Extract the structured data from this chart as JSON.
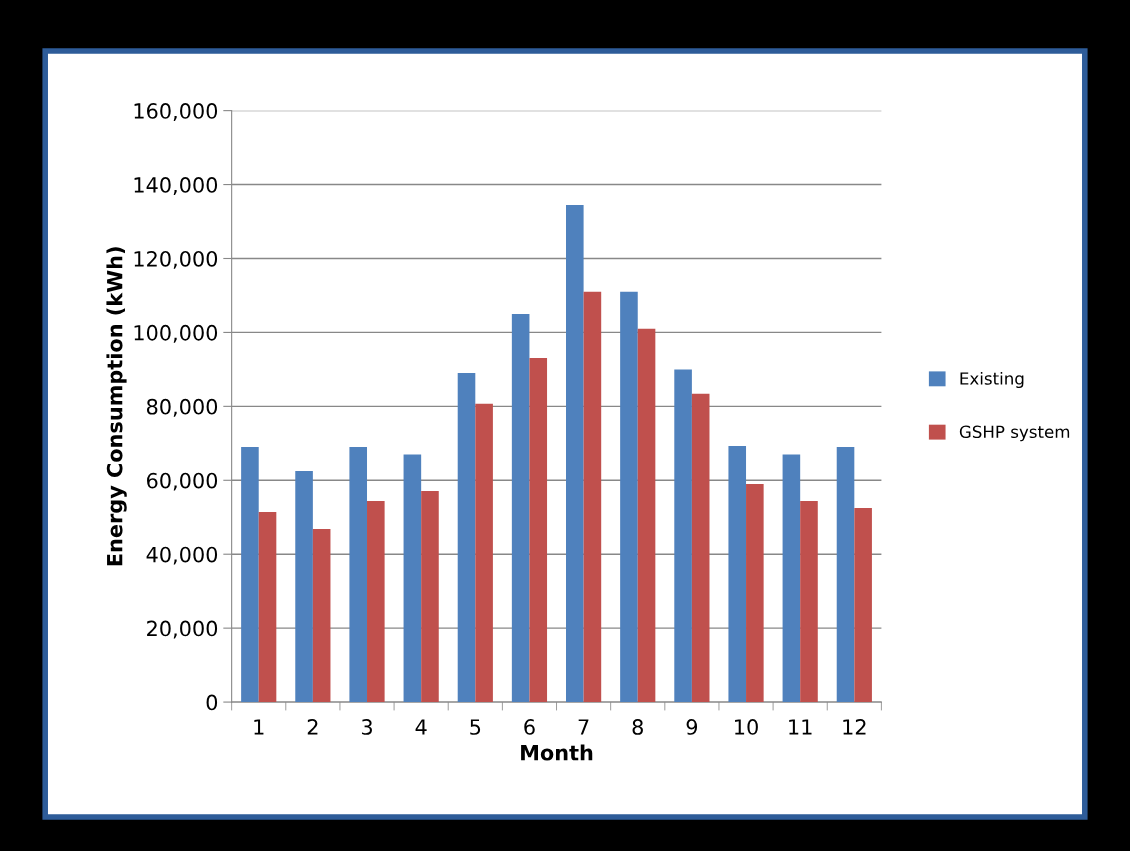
{
  "chart_data": {
    "type": "bar",
    "xlabel": "Month",
    "ylabel": "Energy Consumption (kWh)",
    "categories": [
      "1",
      "2",
      "3",
      "4",
      "5",
      "6",
      "7",
      "8",
      "9",
      "10",
      "11",
      "12"
    ],
    "series": [
      {
        "name": "Existing",
        "color": "#4f81bd",
        "values": [
          69000,
          62500,
          69000,
          67000,
          89000,
          105000,
          134500,
          111000,
          90000,
          69300,
          67000,
          69000
        ]
      },
      {
        "name": "GSHP system",
        "color": "#c0504d",
        "values": [
          51400,
          46800,
          54400,
          57100,
          80700,
          93100,
          111000,
          101000,
          83400,
          59000,
          54400,
          52500
        ]
      }
    ],
    "ylim": [
      0,
      160000
    ],
    "yticks": [
      {
        "value": 0,
        "label": "0"
      },
      {
        "value": 20000,
        "label": "20,000"
      },
      {
        "value": 40000,
        "label": "40,000"
      },
      {
        "value": 60000,
        "label": "60,000"
      },
      {
        "value": 80000,
        "label": "80,000"
      },
      {
        "value": 100000,
        "label": "100,000"
      },
      {
        "value": 120000,
        "label": "120,000"
      },
      {
        "value": 140000,
        "label": "140,000"
      },
      {
        "value": 160000,
        "label": "160,000"
      }
    ],
    "grid": "y",
    "legend": "right"
  }
}
